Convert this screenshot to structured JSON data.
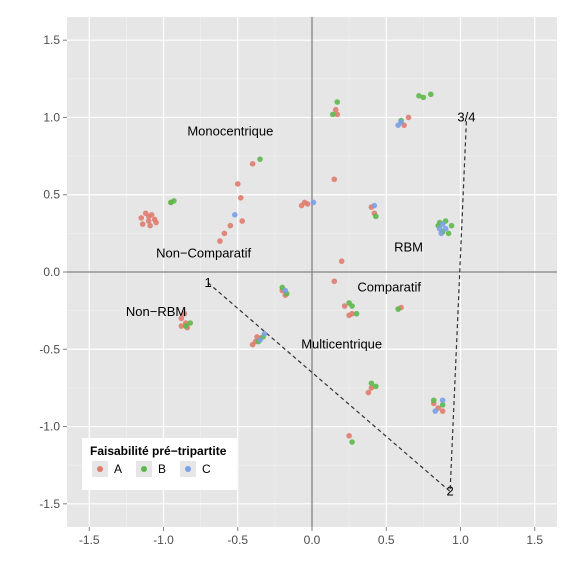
{
  "colors": {
    "panel": "#e6e6e6",
    "grid_major": "#ffffff",
    "grid_minor": "#f2f2f2",
    "axis_line": "#808080",
    "A": "#e07b6e",
    "B": "#5cb84a",
    "C": "#7aa0e6",
    "dashed": "#333333"
  },
  "chart_data": {
    "type": "scatter",
    "title": "",
    "xlabel": "",
    "ylabel": "",
    "xlim": [
      -1.65,
      1.65
    ],
    "ylim": [
      -1.65,
      1.65
    ],
    "x_ticks": [
      -1.5,
      -1.0,
      -0.5,
      0.0,
      0.5,
      1.0,
      1.5
    ],
    "x_tick_labels": [
      "-1.5",
      "-1.0",
      "-0.5",
      "0.0",
      "0.5",
      "1.0",
      "1.5"
    ],
    "y_ticks": [
      -1.5,
      -1.0,
      -0.5,
      0.0,
      0.5,
      1.0,
      1.5
    ],
    "y_tick_labels": [
      "-1.5",
      "-1.0",
      "-0.5",
      "0.0",
      "0.5",
      "1.0",
      "1.5"
    ],
    "grid": true,
    "reference_lines": {
      "x": 0,
      "y": 0
    },
    "legend": {
      "title": "Faisabilité pré−tripartite",
      "position": "bottom-left",
      "entries": [
        "A",
        "B",
        "C"
      ]
    },
    "series": [
      {
        "name": "A",
        "points": [
          [
            -1.15,
            0.35
          ],
          [
            -1.12,
            0.38
          ],
          [
            -1.1,
            0.33
          ],
          [
            -1.08,
            0.37
          ],
          [
            -1.06,
            0.34
          ],
          [
            -1.14,
            0.31
          ],
          [
            -1.09,
            0.3
          ],
          [
            -1.05,
            0.32
          ],
          [
            -1.1,
            0.36
          ],
          [
            -0.95,
            0.45
          ],
          [
            -0.5,
            0.57
          ],
          [
            -0.48,
            0.48
          ],
          [
            -0.4,
            0.7
          ],
          [
            -0.47,
            0.33
          ],
          [
            -0.62,
            0.2
          ],
          [
            -0.59,
            0.25
          ],
          [
            -0.55,
            0.3
          ],
          [
            -0.07,
            0.43
          ],
          [
            -0.05,
            0.45
          ],
          [
            -0.03,
            0.44
          ],
          [
            0.15,
            0.6
          ],
          [
            0.2,
            0.07
          ],
          [
            0.15,
            -0.06
          ],
          [
            0.17,
            1.02
          ],
          [
            0.16,
            1.05
          ],
          [
            0.65,
            1.0
          ],
          [
            0.62,
            0.95
          ],
          [
            0.42,
            0.38
          ],
          [
            0.4,
            0.42
          ],
          [
            0.27,
            -0.27
          ],
          [
            0.25,
            -0.28
          ],
          [
            0.22,
            -0.22
          ],
          [
            0.6,
            -0.23
          ],
          [
            -0.85,
            -0.33
          ],
          [
            -0.88,
            -0.3
          ],
          [
            -0.86,
            -0.27
          ],
          [
            -0.84,
            -0.36
          ],
          [
            -0.88,
            -0.35
          ],
          [
            -0.35,
            -0.43
          ],
          [
            -0.38,
            -0.45
          ],
          [
            -0.4,
            -0.47
          ],
          [
            -0.37,
            -0.42
          ],
          [
            -0.2,
            -0.12
          ],
          [
            -0.18,
            -0.15
          ],
          [
            0.25,
            -1.06
          ],
          [
            0.38,
            -0.78
          ],
          [
            0.4,
            -0.75
          ],
          [
            0.82,
            -0.85
          ],
          [
            0.85,
            -0.88
          ],
          [
            0.88,
            -0.9
          ]
        ]
      },
      {
        "name": "B",
        "points": [
          [
            -0.95,
            0.45
          ],
          [
            -0.93,
            0.46
          ],
          [
            -0.35,
            0.73
          ],
          [
            0.17,
            1.1
          ],
          [
            0.14,
            1.02
          ],
          [
            0.72,
            1.14
          ],
          [
            0.75,
            1.13
          ],
          [
            0.8,
            1.15
          ],
          [
            0.6,
            0.98
          ],
          [
            0.43,
            0.36
          ],
          [
            -0.2,
            -0.1
          ],
          [
            -0.17,
            -0.14
          ],
          [
            0.25,
            -0.2
          ],
          [
            0.27,
            -0.22
          ],
          [
            0.3,
            -0.27
          ],
          [
            0.58,
            -0.24
          ],
          [
            -0.85,
            -0.35
          ],
          [
            -0.82,
            -0.33
          ],
          [
            -0.36,
            -0.45
          ],
          [
            -0.33,
            -0.42
          ],
          [
            0.4,
            -0.72
          ],
          [
            0.43,
            -0.74
          ],
          [
            0.27,
            -1.1
          ],
          [
            0.82,
            -0.83
          ],
          [
            0.88,
            -0.86
          ],
          [
            0.85,
            0.3
          ],
          [
            0.88,
            0.26
          ],
          [
            0.9,
            0.33
          ],
          [
            0.92,
            0.25
          ],
          [
            0.86,
            0.32
          ],
          [
            0.94,
            0.3
          ]
        ]
      },
      {
        "name": "C",
        "points": [
          [
            -0.52,
            0.37
          ],
          [
            0.01,
            0.45
          ],
          [
            0.6,
            0.97
          ],
          [
            0.58,
            0.95
          ],
          [
            0.42,
            0.43
          ],
          [
            -0.18,
            -0.12
          ],
          [
            -0.32,
            -0.4
          ],
          [
            -0.35,
            -0.44
          ],
          [
            0.83,
            -0.9
          ],
          [
            0.88,
            -0.83
          ],
          [
            0.86,
            0.28
          ],
          [
            0.88,
            0.31
          ],
          [
            0.9,
            0.28
          ],
          [
            0.87,
            0.25
          ]
        ]
      }
    ],
    "annotations": [
      {
        "text": "Monocentrique",
        "x": -0.55,
        "y": 0.91
      },
      {
        "text": "Non−Comparatif",
        "x": -0.73,
        "y": 0.12
      },
      {
        "text": "RBM",
        "x": 0.65,
        "y": 0.16
      },
      {
        "text": "Comparatif",
        "x": 0.52,
        "y": -0.1
      },
      {
        "text": "Non−RBM",
        "x": -1.05,
        "y": -0.26
      },
      {
        "text": "Multicentrique",
        "x": 0.2,
        "y": -0.47
      },
      {
        "text": "1",
        "x": -0.7,
        "y": -0.07
      },
      {
        "text": "2",
        "x": 0.93,
        "y": -1.42
      },
      {
        "text": "3/4",
        "x": 1.04,
        "y": 1.0
      }
    ],
    "dashed_path": [
      [
        -0.7,
        -0.07
      ],
      [
        0.93,
        -1.42
      ],
      [
        1.04,
        0.98
      ]
    ]
  }
}
